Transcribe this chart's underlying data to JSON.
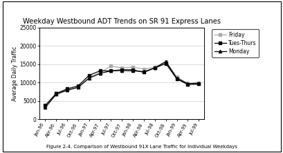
{
  "title": "Weekday Westbound ADT Trends on SR 91 Express Lanes",
  "ylabel": "Average Daily Traffic",
  "caption": "Figure 2-4. Comparison of Westbound 91X Lane Traffic for Individual Weekdays",
  "ylim": [
    0,
    25000
  ],
  "yticks": [
    0,
    5000,
    10000,
    15000,
    20000,
    25000
  ],
  "x_labels": [
    "Jan-96",
    "Apr-96",
    "Jul-96",
    "Oct-96",
    "Jan-97",
    "Apr-97",
    "Jul-97",
    "Oct-97",
    "Jan-98",
    "Apr-98",
    "Jul-98",
    "Oct-98",
    "Jan-99",
    "Apr-99",
    "Jul-99"
  ],
  "friday": [
    3500,
    7200,
    8000,
    8800,
    11500,
    12700,
    14500,
    14000,
    14200,
    13700,
    14200,
    15800,
    11500,
    9800,
    9800
  ],
  "tues_thurs": [
    3800,
    7000,
    8300,
    9100,
    12000,
    13200,
    13200,
    13500,
    13500,
    12800,
    14000,
    15200,
    11000,
    9500,
    9600
  ],
  "monday": [
    3200,
    6800,
    7900,
    8700,
    11200,
    12500,
    13200,
    13300,
    13200,
    13000,
    14000,
    15700,
    11200,
    9700,
    9900
  ],
  "friday_color": "#aaaaaa",
  "tues_color": "#000000",
  "monday_color": "#000000",
  "legend_labels": [
    "Friday",
    "Tues-Thurs",
    "Monday"
  ],
  "bg_color": "#ffffff"
}
